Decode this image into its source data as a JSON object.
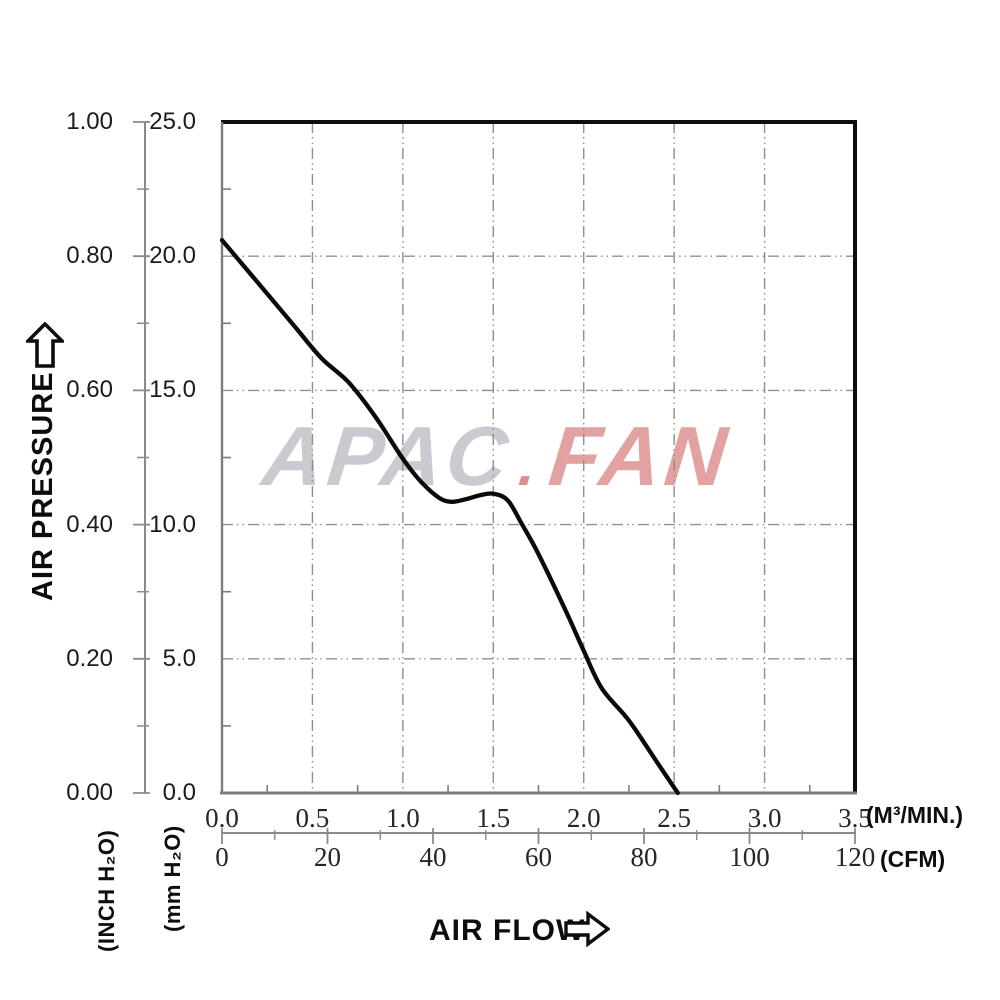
{
  "watermark": {
    "part1": "APAC",
    "dot": ".",
    "part2": "FAN",
    "color_part1": "#c9cbd0",
    "color_dot": "#dd8f8f",
    "color_part2": "#e2a2a2"
  },
  "y_axis": {
    "title": "AIR PRESSURE",
    "unit_inch": "(INCH H₂O)",
    "unit_mm": "(mm H₂O)",
    "ticks_inch": [
      "1.00",
      "0.80",
      "0.60",
      "0.40",
      "0.20",
      "0.00"
    ],
    "ticks_mm": [
      "25.0",
      "20.0",
      "15.0",
      "10.0",
      "5.0",
      "0.0"
    ]
  },
  "x_axis": {
    "title": "AIR FLOW",
    "unit_m3min": "(M³/MIN.)",
    "unit_cfm": "(CFM)",
    "ticks_m3min": [
      "0.0",
      "0.5",
      "1.0",
      "1.5",
      "2.0",
      "2.5",
      "3.0",
      "3.5"
    ],
    "ticks_cfm": [
      "0",
      "20",
      "40",
      "60",
      "80",
      "100",
      "120"
    ]
  },
  "colors": {
    "curve": "#0a0a0a",
    "grid": "#8f8f8f",
    "axis_gray": "#8a8a8a",
    "border_dark": "#0d0d0d",
    "border_gray": "#7d7d7d",
    "text": "#1b1b1b"
  },
  "chart_data": {
    "type": "line",
    "title": "",
    "xlabel": "AIR FLOW",
    "ylabel": "AIR PRESSURE",
    "x_units": [
      "M³/MIN.",
      "CFM"
    ],
    "y_units": [
      "INCH H₂O",
      "mm H₂O"
    ],
    "x_range_m3min": [
      0,
      3.5
    ],
    "x_range_cfm": [
      0,
      120
    ],
    "y_range_mm": [
      0,
      25
    ],
    "y_range_inch": [
      0,
      1.0
    ],
    "x_major_tick_step_m3min": 0.5,
    "x_minor_tick_step_m3min": 0.25,
    "cfm_tick_step": 10,
    "y_major_tick_step_mm": 5,
    "y_minor_tick_step_mm": 2.5,
    "grid": "dash-dot",
    "legend": "none",
    "series": [
      {
        "name": "fan-performance-curve",
        "x_m3min": [
          0,
          0.1,
          0.25,
          0.4,
          0.55,
          0.7,
          0.85,
          1.0,
          1.1,
          1.2,
          1.27,
          1.35,
          1.43,
          1.5,
          1.58,
          1.66,
          1.75,
          1.9,
          2.0,
          2.1,
          2.25,
          2.4,
          2.52
        ],
        "y_mm": [
          20.6,
          19.8,
          18.6,
          17.4,
          16.2,
          15.3,
          14.0,
          12.45,
          11.6,
          11.0,
          10.85,
          10.95,
          11.1,
          11.15,
          10.9,
          10.0,
          8.9,
          6.8,
          5.3,
          3.9,
          2.7,
          1.2,
          0
        ]
      }
    ]
  }
}
